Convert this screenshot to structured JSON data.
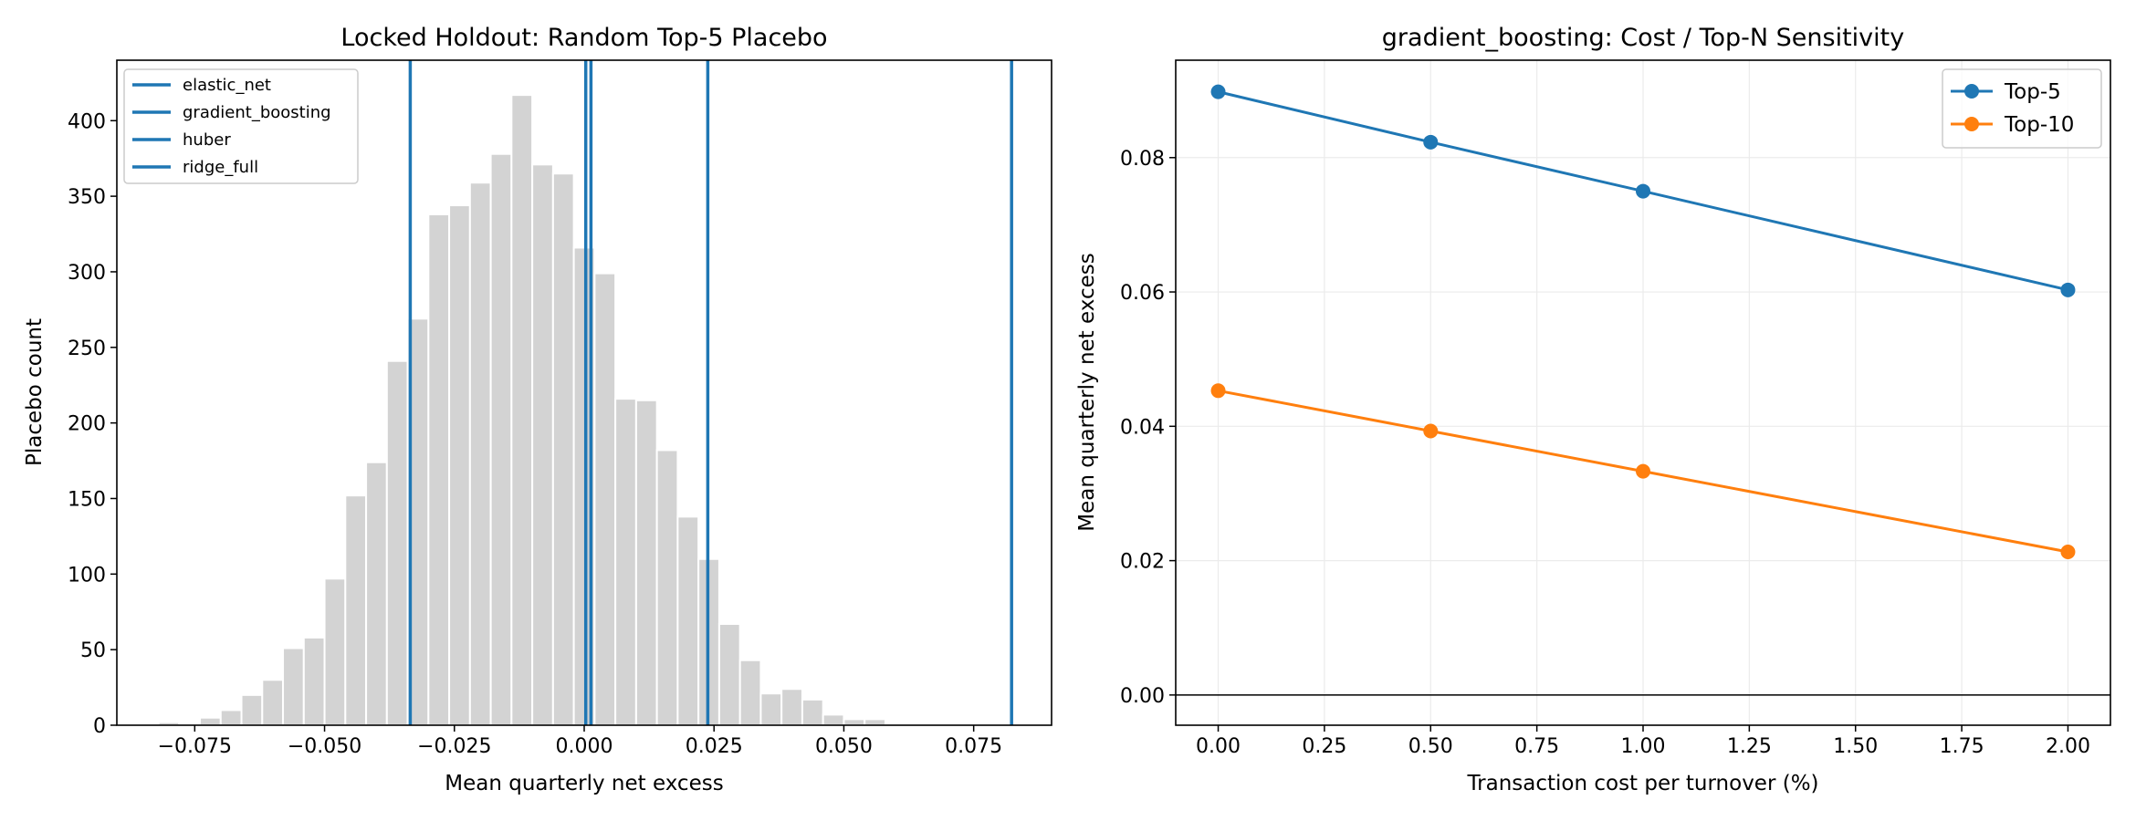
{
  "chart_data": [
    {
      "type": "bar",
      "title": "Locked Holdout: Random Top-5 Placebo",
      "xlabel": "Mean quarterly net excess",
      "ylabel": "Placebo count",
      "xlim": [
        -0.09,
        0.09
      ],
      "ylim": [
        0,
        440
      ],
      "xticks": [
        -0.075,
        -0.05,
        -0.025,
        0.0,
        0.025,
        0.05,
        0.075
      ],
      "xtick_labels": [
        "−0.075",
        "−0.050",
        "−0.025",
        "0.000",
        "0.025",
        "0.050",
        "0.075"
      ],
      "yticks": [
        0,
        50,
        100,
        150,
        200,
        250,
        300,
        350,
        400
      ],
      "ytick_labels": [
        "0",
        "50",
        "100",
        "150",
        "200",
        "250",
        "300",
        "350",
        "400"
      ],
      "grid": false,
      "legend_position": "top-left",
      "bar_color": "#d3d3d3",
      "bins": {
        "start": -0.082,
        "width": 0.004,
        "counts": [
          2,
          0,
          5,
          10,
          20,
          30,
          51,
          58,
          97,
          152,
          174,
          241,
          269,
          338,
          344,
          359,
          378,
          417,
          371,
          365,
          316,
          299,
          216,
          215,
          182,
          138,
          110,
          67,
          43,
          21,
          24,
          17,
          7,
          4,
          4
        ]
      },
      "vlines": [
        {
          "name": "elastic_net",
          "x": -0.0335,
          "color": "#1f77b4"
        },
        {
          "name": "gradient_boosting",
          "x": 0.0823,
          "color": "#1f77b4"
        },
        {
          "name": "huber",
          "x": 0.0238,
          "color": "#1f77b4"
        },
        {
          "name": "ridge_full",
          "x": 0.0013,
          "color": "#1f77b4"
        }
      ],
      "extra_vline": {
        "x": 0.0003,
        "color": "#1f77b4"
      }
    },
    {
      "type": "line",
      "title": "gradient_boosting: Cost / Top-N Sensitivity",
      "xlabel": "Transaction cost per turnover (%)",
      "ylabel": "Mean quarterly net excess",
      "xlim": [
        -0.1,
        2.1
      ],
      "ylim": [
        -0.0045,
        0.0945
      ],
      "xticks": [
        0.0,
        0.25,
        0.5,
        0.75,
        1.0,
        1.25,
        1.5,
        1.75,
        2.0
      ],
      "xtick_labels": [
        "0.00",
        "0.25",
        "0.50",
        "0.75",
        "1.00",
        "1.25",
        "1.50",
        "1.75",
        "2.00"
      ],
      "yticks": [
        0.0,
        0.02,
        0.04,
        0.06,
        0.08
      ],
      "ytick_labels": [
        "0.00",
        "0.02",
        "0.04",
        "0.06",
        "0.08"
      ],
      "grid": true,
      "legend_position": "top-right",
      "reference_hline": 0.0,
      "x": [
        0.0,
        0.5,
        1.0,
        2.0
      ],
      "series": [
        {
          "name": "Top-5",
          "color": "#1f77b4",
          "values": [
            0.0898,
            0.0823,
            0.075,
            0.0603
          ]
        },
        {
          "name": "Top-10",
          "color": "#ff7f0e",
          "values": [
            0.0453,
            0.0393,
            0.0333,
            0.0213
          ]
        }
      ]
    }
  ]
}
